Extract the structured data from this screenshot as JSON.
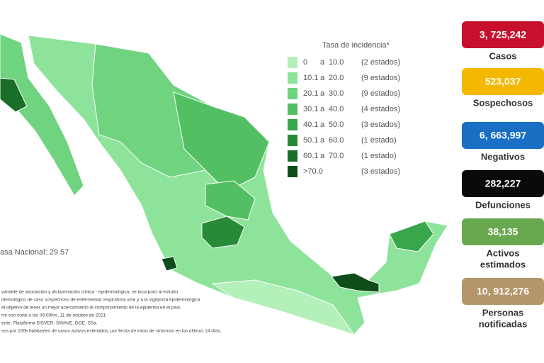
{
  "legend": {
    "title": "Tasa de incidencia*",
    "items": [
      {
        "from": "0",
        "to": "10.0",
        "sep": "a",
        "count": "(2 estados)",
        "color": "#b4f0b9"
      },
      {
        "from": "10.1",
        "sep": "a",
        "to": "20.0",
        "count": "(9 estados)",
        "color": "#8ee39a"
      },
      {
        "from": "20.1",
        "sep": "a",
        "to": "30.0",
        "count": "(9 estados)",
        "color": "#6fd37f"
      },
      {
        "from": "30.1",
        "sep": "a",
        "to": "40.0",
        "count": "(4 estados)",
        "color": "#52bf62"
      },
      {
        "from": "40.1",
        "sep": "a",
        "to": "50.0",
        "count": "(3 estados)",
        "color": "#38a64a"
      },
      {
        "from": "50.1",
        "sep": "a",
        "to": "60.0",
        "count": "(1 estado)",
        "color": "#268a37"
      },
      {
        "from": "60.1",
        "sep": "a",
        "to": "70.0",
        "count": "(1 estado)",
        "color": "#1a6e2a"
      },
      {
        "from": ">70.0",
        "sep": "",
        "to": "",
        "count": "(3 estados)",
        "color": "#0e4d1a"
      }
    ]
  },
  "national_rate": "asa Nacional: 29.57",
  "notes": [
    "variable de asociación y dictaminación clínica - epidemiológica, se incorporó al estudio",
    "demiológico de caso sospechoso de enfermedad respiratoria viral y a la vigilancia epidemiológica",
    "el objetivo de tener un mejor acercamiento al comportamiento de la epidemia en el país.",
    "rre con corte a las 09:00hrs, 11 de octubre de 2021",
    "ente: Plataforma SISVER, SINAVE, DGE, SSa.",
    "sos por 100k habitantes de casos activos estimados, por fecha de inicio de síntomas en los últimos 14 días."
  ],
  "stats": [
    {
      "value": "3, 725,242",
      "label": [
        "Casos"
      ],
      "color": "#c8102e"
    },
    {
      "value": "523,037",
      "label": [
        "Sospechosos"
      ],
      "color": "#f5b800"
    },
    {
      "value": "6, 663,997",
      "label": [
        "Negativos"
      ],
      "color": "#1a6fc4"
    },
    {
      "value": "282,227",
      "label": [
        "Defunciones"
      ],
      "color": "#0a0a0a"
    },
    {
      "value": "38,135",
      "label": [
        "Activos",
        "estimados"
      ],
      "color": "#6aa84f"
    },
    {
      "value": "10, 912,276",
      "label": [
        "Personas",
        "notificadas"
      ],
      "color": "#b5956a"
    }
  ]
}
